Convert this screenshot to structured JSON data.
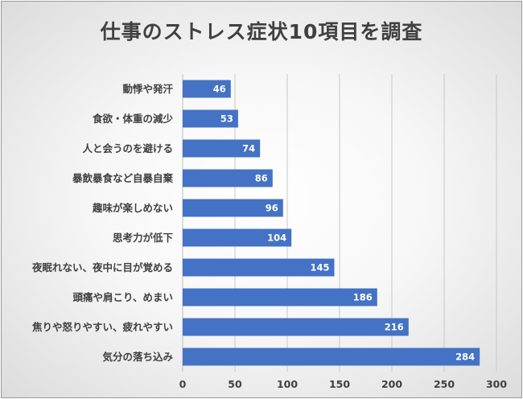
{
  "chart_data": {
    "type": "bar",
    "orientation": "horizontal",
    "title": "仕事のストレス症状10項目を調査",
    "categories": [
      "動悸や発汗",
      "食欲・体重の減少",
      "人と会うのを避ける",
      "暴飲暴食など自暴自棄",
      "趣味が楽しめない",
      "思考力が低下",
      "夜眠れない、夜中に目が覚める",
      "頭痛や肩こり、めまい",
      "焦りや怒りやすい、疲れやすい",
      "気分の落ち込み"
    ],
    "values": [
      46,
      53,
      74,
      86,
      96,
      104,
      145,
      186,
      216,
      284
    ],
    "xlim": [
      0,
      300
    ],
    "xticks": [
      "0",
      "50",
      "100",
      "150",
      "200",
      "250",
      "300"
    ],
    "grid": true,
    "bar_color": "#4472C4",
    "data_labels": true
  }
}
